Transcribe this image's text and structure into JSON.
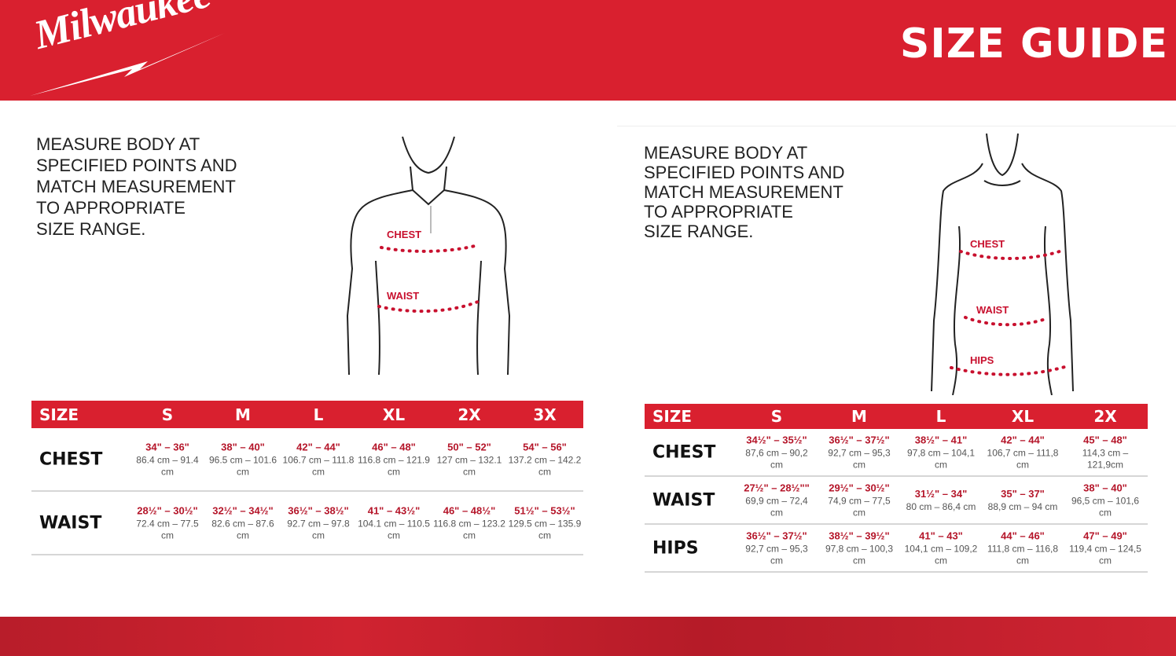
{
  "header": {
    "brand": "Milwaukee",
    "title": "SIZE GUIDE",
    "brand_color": "#d9202f"
  },
  "left": {
    "instructions": [
      "MEASURE BODY AT",
      "SPECIFIED POINTS AND",
      "MATCH MEASUREMENT",
      "TO APPROPRIATE",
      "SIZE RANGE."
    ],
    "figure_labels": {
      "chest": "CHEST",
      "waist": "WAIST"
    },
    "table": {
      "header_label": "SIZE",
      "sizes": [
        "S",
        "M",
        "L",
        "XL",
        "2X",
        "3X"
      ],
      "rows": [
        {
          "label": "CHEST",
          "cells": [
            {
              "in": "34\" – 36\"",
              "cm": "86.4 cm – 91.4 cm"
            },
            {
              "in": "38\" – 40\"",
              "cm": "96.5 cm – 101.6 cm"
            },
            {
              "in": "42\" – 44\"",
              "cm": "106.7 cm – 111.8 cm"
            },
            {
              "in": "46\" – 48\"",
              "cm": "116.8 cm – 121.9 cm"
            },
            {
              "in": "50\" – 52\"",
              "cm": "127 cm – 132.1 cm"
            },
            {
              "in": "54\" – 56\"",
              "cm": "137.2 cm – 142.2 cm"
            }
          ]
        },
        {
          "label": "WAIST",
          "cells": [
            {
              "in": "28½\" – 30½\"",
              "cm": "72.4 cm – 77.5 cm"
            },
            {
              "in": "32½\" – 34½\"",
              "cm": "82.6 cm – 87.6 cm"
            },
            {
              "in": "36½\" – 38½\"",
              "cm": "92.7 cm – 97.8 cm"
            },
            {
              "in": "41\" – 43½\"",
              "cm": "104.1 cm – 110.5 cm"
            },
            {
              "in": "46\" – 48½\"",
              "cm": "116.8 cm – 123.2 cm"
            },
            {
              "in": "51½\" – 53½\"",
              "cm": "129.5 cm – 135.9 cm"
            }
          ]
        }
      ]
    }
  },
  "right": {
    "instructions": [
      "MEASURE BODY AT",
      "SPECIFIED POINTS AND",
      "MATCH MEASUREMENT",
      "TO APPROPRIATE",
      "SIZE RANGE."
    ],
    "figure_labels": {
      "chest": "CHEST",
      "waist": "WAIST",
      "hips": "HIPS"
    },
    "table": {
      "header_label": "SIZE",
      "sizes": [
        "S",
        "M",
        "L",
        "XL",
        "2X"
      ],
      "rows": [
        {
          "label": "CHEST",
          "cells": [
            {
              "in": "34½\" – 35½\"",
              "cm": "87,6 cm – 90,2 cm"
            },
            {
              "in": "36½\" – 37½\"",
              "cm": "92,7 cm – 95,3 cm"
            },
            {
              "in": "38½\" – 41\"",
              "cm": "97,8 cm – 104,1 cm"
            },
            {
              "in": "42\" – 44\"",
              "cm": "106,7 cm – 111,8 cm"
            },
            {
              "in": "45\" – 48\"",
              "cm": "114,3 cm – 121,9cm"
            }
          ]
        },
        {
          "label": "WAIST",
          "cells": [
            {
              "in": "27½\" – 28½\"\"",
              "cm": "69,9 cm – 72,4 cm"
            },
            {
              "in": "29½\" – 30½\"",
              "cm": "74,9 cm – 77,5 cm"
            },
            {
              "in": "31½\" – 34\"",
              "cm": "80 cm – 86,4 cm"
            },
            {
              "in": "35\" – 37\"",
              "cm": "88,9 cm – 94 cm"
            },
            {
              "in": "38\" – 40\"",
              "cm": "96,5 cm – 101,6 cm"
            }
          ]
        },
        {
          "label": "HIPS",
          "cells": [
            {
              "in": "36½\" – 37½\"",
              "cm": "92,7 cm – 95,3 cm"
            },
            {
              "in": "38½\" – 39½\"",
              "cm": "97,8 cm – 100,3 cm"
            },
            {
              "in": "41\" – 43\"",
              "cm": "104,1 cm – 109,2 cm"
            },
            {
              "in": "44\" – 46\"",
              "cm": "111,8 cm – 116,8 cm"
            },
            {
              "in": "47\" – 49\"",
              "cm": "119,4 cm – 124,5 cm"
            }
          ]
        }
      ]
    }
  }
}
